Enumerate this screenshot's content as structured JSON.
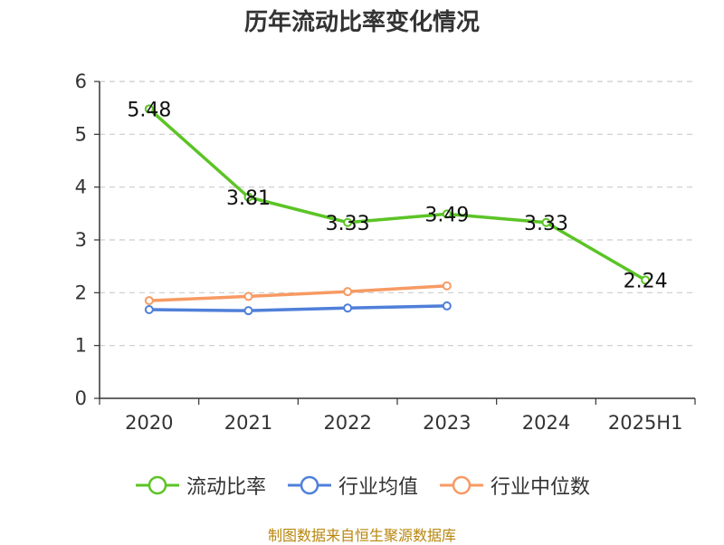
{
  "chart_data": {
    "type": "line",
    "title": "历年流动比率变化情况",
    "categories": [
      "2020",
      "2021",
      "2022",
      "2023",
      "2024",
      "2025H1"
    ],
    "ylim": [
      0,
      6
    ],
    "yticks": [
      0,
      1,
      2,
      3,
      4,
      5,
      6
    ],
    "grid": true,
    "legend_position": "bottom",
    "series": [
      {
        "name": "流动比率",
        "color": "#5bc425",
        "values": [
          5.48,
          3.81,
          3.33,
          3.49,
          3.33,
          2.24
        ],
        "labels": [
          "5.48",
          "3.81",
          "3.33",
          "3.49",
          "3.33",
          "2.24"
        ]
      },
      {
        "name": "行业均值",
        "color": "#4f7fd9",
        "values": [
          1.68,
          1.66,
          1.71,
          1.75,
          null,
          null
        ]
      },
      {
        "name": "行业中位数",
        "color": "#f79a63",
        "values": [
          1.85,
          1.93,
          2.02,
          2.13,
          null,
          null
        ]
      }
    ]
  },
  "source": "制图数据来自恒生聚源数据库"
}
